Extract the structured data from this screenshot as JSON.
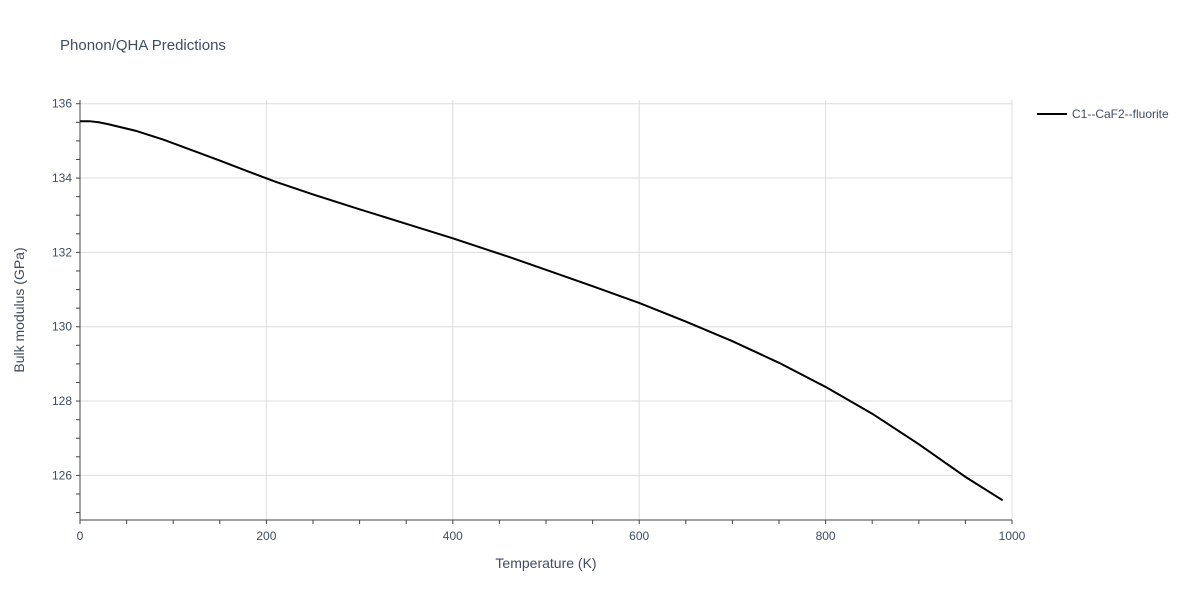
{
  "chart_data": {
    "type": "line",
    "title": "Phonon/QHA Predictions",
    "xlabel": "Temperature (K)",
    "ylabel": "Bulk modulus (GPa)",
    "xlim": [
      0,
      1000
    ],
    "ylim": [
      124.8,
      136.1
    ],
    "x_ticks": [
      0,
      200,
      400,
      600,
      800,
      1000
    ],
    "y_ticks": [
      126,
      128,
      130,
      132,
      134,
      136
    ],
    "grid": true,
    "legend_position": "top-right",
    "series": [
      {
        "name": "C1--CaF2--fluorite",
        "color": "#000000",
        "x": [
          0,
          10,
          20,
          30,
          40,
          60,
          90,
          120,
          150,
          180,
          210,
          250,
          300,
          350,
          400,
          460,
          500,
          550,
          600,
          650,
          700,
          750,
          800,
          850,
          900,
          950,
          990
        ],
        "y": [
          135.53,
          135.53,
          135.5,
          135.45,
          135.39,
          135.27,
          135.03,
          134.75,
          134.47,
          134.18,
          133.9,
          133.56,
          133.16,
          132.77,
          132.38,
          131.88,
          131.53,
          131.09,
          130.64,
          130.14,
          129.61,
          129.03,
          128.38,
          127.66,
          126.84,
          125.96,
          125.33
        ]
      }
    ]
  }
}
